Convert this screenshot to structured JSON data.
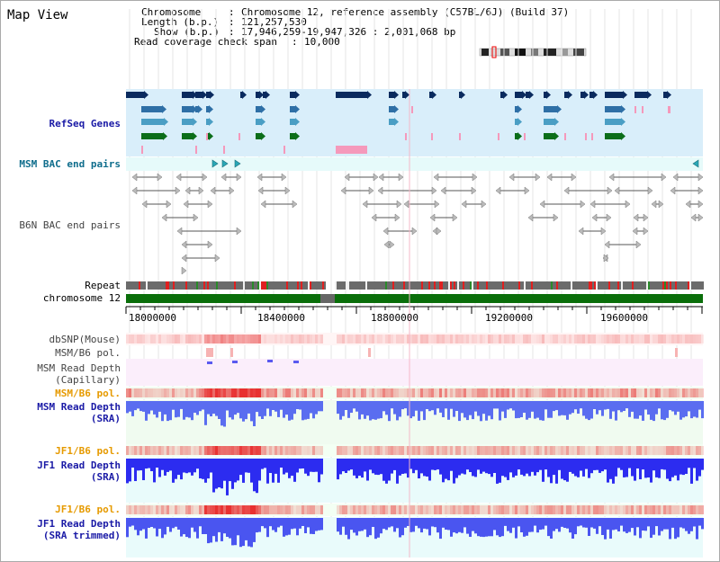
{
  "title": "Map View",
  "info": {
    "chromosome_key": "Chromosome",
    "chromosome_val": "Chromosome 12, reference assembly (C57BL/6J) (Build 37)",
    "length_key": "Length (b.p.)",
    "length_val": "121,257,530",
    "show_key": "Show (b.p.)",
    "show_val": "17,946,259-19,947,326 : 2,001,068 bp",
    "coverage_key": "Read coverage check span",
    "coverage_val": "10,000"
  },
  "tracks": {
    "refseq": "RefSeq Genes",
    "msm_bac": "MSM BAC end pairs",
    "b6n_bac": "B6N BAC end pairs",
    "repeat": "Repeat",
    "chromosome": "chromosome 12",
    "dbsnp": "dbSNP(Mouse)",
    "msm_b6_pol": "MSM/B6 pol.",
    "msm_read_depth_cap_1": "MSM Read Depth",
    "msm_read_depth_cap_2": "(Capillary)",
    "msm_b6_pol_2": "MSM/B6 pol.",
    "msm_read_depth_sra_1": "MSM Read Depth",
    "msm_read_depth_sra_2": "(SRA)",
    "jf1_b6_pol": "JF1/B6 pol.",
    "jf1_read_depth_sra_1": "JF1 Read Depth",
    "jf1_read_depth_sra_2": "(SRA)",
    "jf1_b6_pol_2": "JF1/B6 pol.",
    "jf1_read_depth_trim_1": "JF1 Read Depth",
    "jf1_read_depth_trim_2": "(SRA trimmed)"
  },
  "axis": {
    "ticks": [
      "18000000",
      "18400000",
      "18800000",
      "19200000",
      "19600000"
    ]
  },
  "colors": {
    "refseq_bg": "#d9eefa",
    "msm_bac_bg": "#e9fafa",
    "chromosome_green": "#0a6e0a",
    "depth_blue": "#3333ff",
    "pol_red": "#e83030",
    "label_blue": "#1a1aa6",
    "label_orange": "#e69a00"
  }
}
